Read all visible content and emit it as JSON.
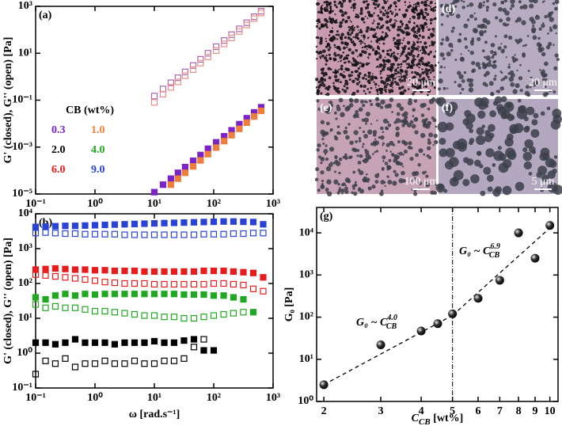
{
  "chart_data": [
    {
      "type": "scatter",
      "panel_label": "(a)",
      "ylabel": "G' (closed), G'' (open) [Pa]",
      "xlog": true,
      "ylog": true,
      "xlim": [
        0.1,
        1000
      ],
      "ylim": [
        1e-05,
        1000
      ],
      "xticks": [
        {
          "value": 0.1,
          "label": "10⁻¹"
        },
        {
          "value": 1,
          "label": "10⁰"
        },
        {
          "value": 10,
          "label": "10¹"
        },
        {
          "value": 100,
          "label": "10²"
        },
        {
          "value": 1000,
          "label": "10³"
        }
      ],
      "yticks": [
        {
          "value": 1e-05,
          "label": "10⁻⁵"
        },
        {
          "value": 0.001,
          "label": "10⁻³"
        },
        {
          "value": 0.1,
          "label": "10⁻¹"
        },
        {
          "value": 10,
          "label": "10¹"
        },
        {
          "value": 1000,
          "label": "10³"
        }
      ],
      "x": [
        10,
        14,
        19,
        25,
        33,
        45,
        60,
        80,
        110,
        150,
        200,
        270,
        360,
        480,
        630
      ],
      "series": [
        {
          "color": "#a866b0",
          "filled": false,
          "values": [
            0.15,
            0.3,
            0.55,
            0.9,
            1.6,
            3,
            5.5,
            10,
            19,
            35,
            62,
            110,
            200,
            360,
            620
          ]
        },
        {
          "color": "#ec8f86",
          "filled": false,
          "values": [
            0.08,
            0.18,
            0.35,
            0.6,
            1.1,
            2,
            3.8,
            7,
            13,
            25,
            45,
            85,
            160,
            300,
            520
          ]
        },
        {
          "color": "#7b22c9",
          "filled": true,
          "values": [
            1.2e-05,
            2.5e-05,
            4.5e-05,
            8e-05,
            0.00014,
            0.00026,
            0.00046,
            0.00085,
            0.0016,
            0.0029,
            0.0052,
            0.0095,
            0.017,
            0.03,
            0.05
          ]
        },
        {
          "color": "#f07d3a",
          "filled": true,
          "values": [
            null,
            null,
            2.5e-05,
            4.5e-05,
            8e-05,
            0.00015,
            0.00027,
            0.0005,
            0.00095,
            0.0018,
            0.0032,
            0.006,
            0.011,
            0.02,
            0.035
          ]
        }
      ],
      "legend": {
        "title": "CB (wt%)",
        "entries": [
          {
            "name": "0.3",
            "color": "#7b22c9"
          },
          {
            "name": "1.0",
            "color": "#f07d3a"
          },
          {
            "name": "2.0",
            "color": "#000000"
          },
          {
            "name": "4.0",
            "color": "#21a821"
          },
          {
            "name": "6.0",
            "color": "#e81c1c"
          },
          {
            "name": "9.0",
            "color": "#2843d6"
          }
        ]
      }
    },
    {
      "type": "scatter",
      "panel_label": "(b)",
      "ylabel": "G' (closed), G'' (open) [Pa]",
      "xlabel": "ω [rad.s⁻¹]",
      "xlog": true,
      "ylog": true,
      "xlim": [
        0.1,
        1000
      ],
      "ylim": [
        0.1,
        10000
      ],
      "xticks": [
        {
          "value": 0.1,
          "label": "10⁻¹"
        },
        {
          "value": 1,
          "label": "10⁰"
        },
        {
          "value": 10,
          "label": "10¹"
        },
        {
          "value": 100,
          "label": "10²"
        },
        {
          "value": 1000,
          "label": "10³"
        }
      ],
      "yticks": [
        {
          "value": 0.1,
          "label": "10⁻¹"
        },
        {
          "value": 1,
          "label": "10⁰"
        },
        {
          "value": 10,
          "label": "10¹"
        },
        {
          "value": 100,
          "label": "10²"
        },
        {
          "value": 1000,
          "label": "10³"
        },
        {
          "value": 10000,
          "label": "10⁴"
        }
      ],
      "x": [
        0.1,
        0.147,
        0.215,
        0.316,
        0.464,
        0.681,
        1,
        1.47,
        2.15,
        3.16,
        4.64,
        6.81,
        10,
        14.7,
        21.5,
        31.6,
        46.4,
        68.1,
        100,
        147,
        215,
        316,
        464,
        681
      ],
      "series": [
        {
          "color": "#2843d6",
          "filled": true,
          "values": [
            4200,
            4300,
            4400,
            4500,
            4500,
            4600,
            4700,
            4800,
            4900,
            5000,
            5100,
            5200,
            5300,
            5400,
            5500,
            5600,
            5700,
            5800,
            5900,
            6000,
            6000,
            5900,
            5800,
            5000
          ]
        },
        {
          "color": "#2843d6",
          "filled": false,
          "values": [
            2800,
            2900,
            2800,
            2700,
            2700,
            2600,
            2600,
            2600,
            2600,
            2500,
            2500,
            2500,
            2500,
            2500,
            2500,
            2500,
            2500,
            2600,
            2600,
            2600,
            2700,
            2700,
            2800,
            2800
          ]
        },
        {
          "color": "#e81c1c",
          "filled": true,
          "values": [
            250,
            260,
            270,
            260,
            250,
            250,
            240,
            240,
            230,
            230,
            230,
            220,
            220,
            220,
            220,
            220,
            220,
            230,
            230,
            230,
            220,
            210,
            200,
            150
          ]
        },
        {
          "color": "#e81c1c",
          "filled": false,
          "values": [
            180,
            170,
            160,
            150,
            140,
            130,
            120,
            110,
            105,
            100,
            100,
            100,
            95,
            95,
            95,
            95,
            95,
            95,
            100,
            100,
            95,
            90,
            70,
            60
          ]
        },
        {
          "color": "#21a821",
          "filled": true,
          "values": [
            40,
            35,
            45,
            50,
            45,
            50,
            48,
            50,
            50,
            50,
            50,
            50,
            50,
            50,
            50,
            48,
            48,
            48,
            45,
            45,
            40,
            35,
            15,
            null
          ]
        },
        {
          "color": "#21a821",
          "filled": false,
          "values": [
            25,
            20,
            22,
            20,
            20,
            18,
            16,
            16,
            15,
            14,
            13,
            12,
            12,
            11,
            11,
            10,
            10,
            11,
            12,
            13,
            14,
            15,
            null,
            null
          ]
        },
        {
          "color": "#000000",
          "filled": true,
          "values": [
            2,
            2,
            1.8,
            2,
            2.5,
            2,
            2,
            2,
            1.8,
            2,
            2,
            2,
            2.2,
            2,
            2,
            2.3,
            2.5,
            1.2,
            1.2,
            null,
            null,
            null,
            null,
            null
          ]
        },
        {
          "color": "#000000",
          "filled": false,
          "values": [
            0.25,
            0.6,
            0.5,
            0.7,
            0.4,
            0.5,
            0.5,
            0.6,
            0.5,
            0.5,
            0.6,
            0.5,
            0.5,
            0.6,
            0.6,
            0.7,
            1.5,
            2.5,
            null,
            null,
            null,
            null,
            null,
            null
          ]
        }
      ]
    },
    {
      "type": "scatter",
      "panel_label": "(g)",
      "ylabel": "G₀  [Pa]",
      "xlabel": {
        "symbol": "C",
        "subscript": "CB",
        "unit": " [wt%]"
      },
      "xlog": true,
      "ylog": true,
      "xlim": [
        1.9,
        10.6
      ],
      "ylim": [
        1,
        40000
      ],
      "xticks": [
        2,
        3,
        4,
        5,
        6,
        7,
        8,
        9,
        10
      ],
      "yticks": [
        {
          "value": 1,
          "label": "10⁰"
        },
        {
          "value": 10,
          "label": "10¹"
        },
        {
          "value": 100,
          "label": "10²"
        },
        {
          "value": 1000,
          "label": "10³"
        },
        {
          "value": 10000,
          "label": "10⁴"
        }
      ],
      "series": [
        {
          "color": "#222222",
          "marker": "sphere",
          "x": [
            2,
            3,
            4,
            4.5,
            5,
            6,
            7,
            8,
            9,
            10
          ],
          "values": [
            2.5,
            22,
            47,
            70,
            120,
            280,
            750,
            10000,
            2500,
            15000
          ]
        }
      ],
      "fits": [
        {
          "x": [
            2,
            5
          ],
          "values": [
            2.5,
            110
          ]
        },
        {
          "x": [
            5,
            10
          ],
          "values": [
            110,
            13000
          ]
        }
      ],
      "vline": 5,
      "annotations": [
        {
          "text": "G₀ ~ C",
          "subscript": "CB",
          "superscript": "4.0"
        },
        {
          "text": "G₀ ~ C",
          "subscript": "CB",
          "superscript": "6.9"
        }
      ]
    }
  ],
  "images": [
    {
      "label": "(c)",
      "scale_bar": "20 μm"
    },
    {
      "label": "(d)",
      "scale_bar": "20 μm"
    },
    {
      "label": "(e)",
      "scale_bar": "100 μm"
    },
    {
      "label": "(f)",
      "scale_bar": "5 μm"
    }
  ]
}
